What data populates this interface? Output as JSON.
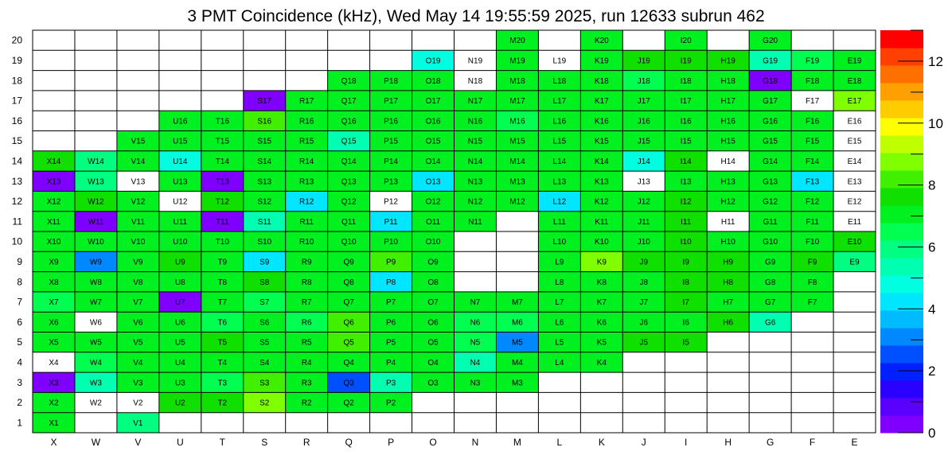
{
  "chart_data": {
    "type": "heatmap",
    "title": "3 PMT Coincidence (kHz), Wed May 14 19:55:59 2025, run 12633 subrun 462",
    "columns": [
      "X",
      "W",
      "V",
      "U",
      "T",
      "S",
      "R",
      "Q",
      "P",
      "O",
      "N",
      "M",
      "L",
      "K",
      "J",
      "I",
      "H",
      "G",
      "F",
      "E"
    ],
    "rows": [
      "20",
      "19",
      "18",
      "17",
      "16",
      "15",
      "14",
      "13",
      "12",
      "11",
      "10",
      "9",
      "8",
      "7",
      "6",
      "5",
      "4",
      "3",
      "2",
      "1"
    ],
    "zlim": [
      0,
      13
    ],
    "colorbar_ticks": [
      "0",
      "2",
      "4",
      "6",
      "8",
      "10",
      "12"
    ],
    "palette": [
      "#7f00ff",
      "#5a00ff",
      "#2a00ff",
      "#0020ff",
      "#0050ff",
      "#0088ff",
      "#00bbff",
      "#00e6ff",
      "#00ffe0",
      "#00ffb0",
      "#00ff80",
      "#00ff50",
      "#00f020",
      "#10e000",
      "#40f000",
      "#80ff00",
      "#c0ff00",
      "#ffff00",
      "#ffcc00",
      "#ffa000",
      "#ff7000",
      "#ff4000",
      "#ff0000"
    ],
    "values": [
      [
        null,
        null,
        null,
        null,
        null,
        null,
        null,
        null,
        null,
        null,
        null,
        7,
        null,
        7,
        null,
        7,
        null,
        7,
        null,
        null
      ],
      [
        null,
        null,
        null,
        null,
        null,
        null,
        null,
        null,
        null,
        5,
        0,
        7,
        0,
        7,
        7.5,
        7.5,
        7.5,
        5.5,
        6.5,
        7
      ],
      [
        null,
        null,
        null,
        null,
        null,
        null,
        null,
        7,
        7,
        7,
        0,
        7,
        7,
        7,
        6.5,
        7,
        7,
        0.5,
        7,
        7
      ],
      [
        null,
        null,
        null,
        null,
        null,
        0.5,
        7,
        7,
        7,
        7,
        7,
        7,
        7,
        7,
        7,
        7,
        7,
        7,
        0,
        8.5
      ],
      [
        null,
        null,
        null,
        7,
        7,
        8,
        7,
        7,
        7,
        7,
        7,
        6.5,
        7,
        7,
        7,
        7,
        7,
        7,
        7,
        0
      ],
      [
        null,
        null,
        7,
        7,
        7,
        7,
        7,
        5.5,
        7,
        7,
        7,
        7,
        7,
        7,
        7,
        7,
        7,
        7,
        7,
        0
      ],
      [
        7.5,
        6,
        7,
        5,
        7,
        7,
        7,
        7,
        7,
        7,
        7,
        7,
        7,
        7,
        5,
        7.5,
        0,
        7,
        7,
        0
      ],
      [
        0.5,
        6,
        0,
        7,
        0.5,
        7,
        7,
        7,
        7,
        4.5,
        7,
        7,
        7,
        7,
        0,
        7,
        7,
        7,
        4.5,
        0
      ],
      [
        7,
        7.5,
        7,
        0,
        7.5,
        7,
        4.5,
        7,
        0,
        7,
        7,
        7,
        4.5,
        7,
        7,
        7.5,
        7,
        7,
        7,
        0
      ],
      [
        7,
        0.5,
        7,
        7,
        0.5,
        5.5,
        7,
        7,
        4.5,
        7,
        7,
        null,
        7,
        7,
        7,
        7.5,
        0,
        7,
        7,
        0
      ],
      [
        7,
        7,
        7,
        7,
        7,
        7,
        7,
        7,
        7,
        7,
        null,
        null,
        7,
        7,
        7,
        7.5,
        7,
        7,
        7,
        7.5
      ],
      [
        7,
        3,
        7,
        7.5,
        7,
        4.5,
        7,
        7,
        8,
        7,
        null,
        null,
        7,
        9,
        7.5,
        7.5,
        7.5,
        7,
        7.5,
        6
      ],
      [
        7,
        7,
        7,
        7,
        7,
        7.5,
        7,
        7,
        4,
        7,
        null,
        null,
        7,
        7,
        7,
        7.5,
        7.5,
        7,
        7,
        null
      ],
      [
        6.5,
        7,
        7,
        0.5,
        7,
        6.5,
        7,
        7,
        7,
        7,
        7,
        7,
        7,
        7,
        7,
        7.5,
        7,
        7,
        7,
        null
      ],
      [
        7,
        0,
        7,
        7,
        6.5,
        7,
        6.5,
        8,
        7,
        7,
        6.5,
        6.5,
        7,
        7,
        7,
        7,
        7.5,
        5.5,
        null,
        null
      ],
      [
        7,
        7,
        7,
        7,
        7.5,
        7,
        7,
        8,
        7,
        7,
        6.5,
        3,
        7,
        7,
        7.5,
        7.5,
        null,
        null,
        null,
        null
      ],
      [
        0,
        6.5,
        7,
        7,
        7,
        7,
        7,
        7,
        7,
        7,
        5.5,
        7,
        7,
        7,
        null,
        null,
        null,
        null,
        null,
        null
      ],
      [
        0.5,
        5.5,
        7,
        7,
        6.5,
        8,
        7,
        2.5,
        5.5,
        7,
        7,
        7,
        null,
        null,
        null,
        null,
        null,
        null,
        null,
        null
      ],
      [
        7,
        0,
        0,
        7.5,
        7.5,
        8.5,
        7,
        7,
        7,
        null,
        null,
        null,
        null,
        null,
        null,
        null,
        null,
        null,
        null,
        null
      ],
      [
        7,
        null,
        6,
        null,
        null,
        null,
        null,
        null,
        null,
        null,
        null,
        null,
        null,
        null,
        null,
        null,
        null,
        null,
        null,
        null
      ]
    ]
  }
}
